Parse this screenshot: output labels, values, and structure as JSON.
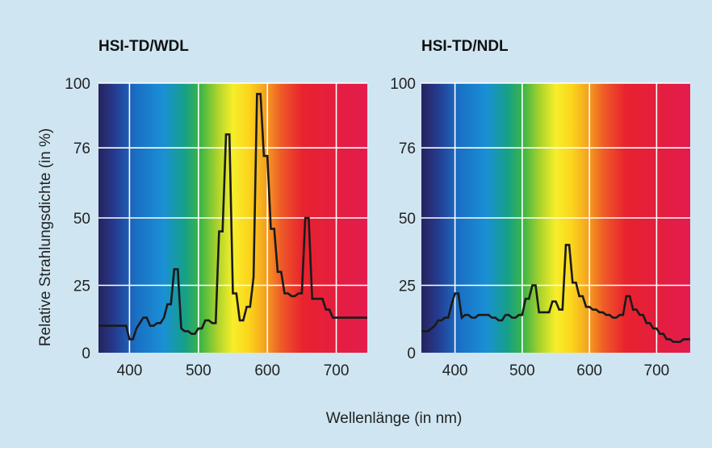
{
  "figure": {
    "ylabel": "Relative Strahlungsdichte (in %)",
    "xlabel": "Wellenlänge (in nm)",
    "background_color": "#cfe6f2",
    "grid_color": "#ffffff",
    "line_color": "#1a1a1a"
  },
  "chart_data": [
    {
      "type": "line",
      "title": "HSI-TD/WDL",
      "xlabel": "Wellenlänge (in nm)",
      "ylabel": "Relative Strahlungsdichte (in %)",
      "xlim": [
        355,
        745
      ],
      "ylim": [
        0,
        100
      ],
      "xticks": [
        400,
        500,
        600,
        700
      ],
      "yticks": [
        0,
        25,
        50,
        76,
        100
      ],
      "grid": true,
      "x": [
        355,
        360,
        365,
        370,
        375,
        380,
        385,
        390,
        395,
        400,
        405,
        410,
        415,
        420,
        425,
        430,
        435,
        440,
        445,
        450,
        455,
        460,
        465,
        470,
        475,
        480,
        485,
        490,
        495,
        500,
        505,
        510,
        515,
        520,
        525,
        530,
        535,
        540,
        545,
        550,
        555,
        560,
        565,
        570,
        575,
        580,
        585,
        590,
        595,
        600,
        605,
        610,
        615,
        620,
        625,
        630,
        635,
        640,
        645,
        650,
        655,
        660,
        665,
        670,
        675,
        680,
        685,
        690,
        695,
        700,
        705,
        710,
        715,
        720,
        725,
        730,
        735,
        740,
        745
      ],
      "y": [
        10,
        10,
        10,
        10,
        10,
        10,
        10,
        10,
        10,
        5,
        5,
        9,
        11,
        13,
        13,
        10,
        10,
        11,
        11,
        13,
        18,
        18,
        31,
        31,
        9,
        8,
        8,
        7,
        7,
        9,
        9,
        12,
        12,
        11,
        11,
        45,
        45,
        81,
        81,
        22,
        22,
        12,
        12,
        17,
        17,
        28,
        96,
        96,
        73,
        73,
        46,
        46,
        30,
        30,
        22,
        22,
        21,
        21,
        22,
        22,
        50,
        50,
        20,
        20,
        20,
        20,
        16,
        16,
        13,
        13,
        13,
        13,
        13,
        13,
        13,
        13,
        13,
        13,
        13
      ]
    },
    {
      "type": "line",
      "title": "HSI-TD/NDL",
      "xlabel": "Wellenlänge (in nm)",
      "ylabel": "Relative Strahlungsdichte (in %)",
      "xlim": [
        350,
        750
      ],
      "ylim": [
        0,
        100
      ],
      "xticks": [
        400,
        500,
        600,
        700
      ],
      "yticks": [
        0,
        25,
        50,
        76,
        100
      ],
      "grid": true,
      "x": [
        350,
        355,
        360,
        365,
        370,
        375,
        380,
        385,
        390,
        395,
        400,
        405,
        410,
        415,
        420,
        425,
        430,
        435,
        440,
        445,
        450,
        455,
        460,
        465,
        470,
        475,
        480,
        485,
        490,
        495,
        500,
        505,
        510,
        515,
        520,
        525,
        530,
        535,
        540,
        545,
        550,
        555,
        560,
        565,
        570,
        575,
        580,
        585,
        590,
        595,
        600,
        605,
        610,
        615,
        620,
        625,
        630,
        635,
        640,
        645,
        650,
        655,
        660,
        665,
        670,
        675,
        680,
        685,
        690,
        695,
        700,
        705,
        710,
        715,
        720,
        725,
        730,
        735,
        740,
        745,
        750
      ],
      "y": [
        8,
        8,
        8,
        9,
        10,
        12,
        12,
        13,
        13,
        18,
        22,
        22,
        13,
        14,
        14,
        13,
        13,
        14,
        14,
        14,
        14,
        13,
        13,
        12,
        12,
        14,
        14,
        13,
        13,
        14,
        14,
        20,
        20,
        25,
        25,
        15,
        15,
        15,
        15,
        19,
        19,
        16,
        16,
        40,
        40,
        26,
        26,
        21,
        21,
        17,
        17,
        16,
        16,
        15,
        15,
        14,
        14,
        13,
        13,
        14,
        14,
        21,
        21,
        16,
        16,
        14,
        14,
        11,
        11,
        9,
        9,
        7,
        7,
        5,
        5,
        4,
        4,
        4,
        5,
        5,
        5
      ]
    }
  ]
}
